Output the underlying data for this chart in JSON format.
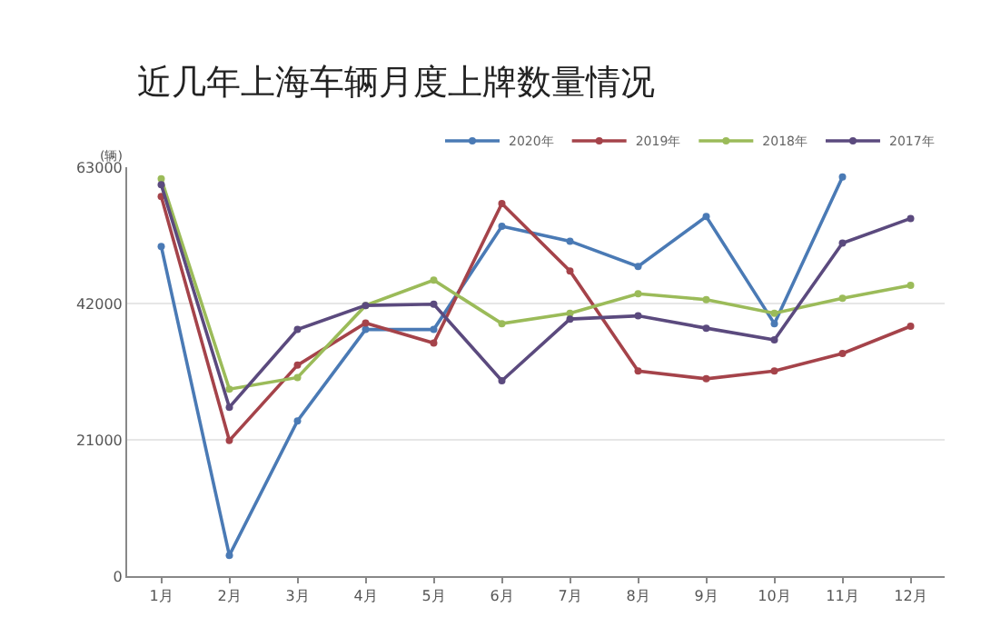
{
  "chart_data": {
    "type": "line",
    "title": "近几年上海车辆月度上牌数量情况",
    "ylabel": "(辆)",
    "categories": [
      "1月",
      "2月",
      "3月",
      "4月",
      "5月",
      "6月",
      "7月",
      "8月",
      "9月",
      "10月",
      "11月",
      "12月"
    ],
    "series": [
      {
        "name": "2020年",
        "color": "#4a7ab5",
        "values": [
          50800,
          3200,
          23900,
          38000,
          38000,
          53900,
          51600,
          47700,
          55400,
          38900,
          61500,
          null
        ]
      },
      {
        "name": "2019年",
        "color": "#a5434a",
        "values": [
          58500,
          20900,
          32500,
          39000,
          35900,
          57400,
          47000,
          31600,
          30400,
          31600,
          34300,
          38500
        ]
      },
      {
        "name": "2018年",
        "color": "#9bbb59",
        "values": [
          61200,
          28800,
          30600,
          41700,
          45600,
          38900,
          40500,
          43500,
          42600,
          40500,
          42800,
          44800
        ]
      },
      {
        "name": "2017年",
        "color": "#5b4a7e",
        "values": [
          60300,
          26000,
          38000,
          41700,
          41900,
          30100,
          39600,
          40100,
          38200,
          36400,
          51300,
          55100
        ]
      }
    ],
    "ylim": [
      0,
      63000
    ],
    "yticks": [
      0,
      21000,
      42000,
      63000
    ],
    "grid": "y",
    "legend": "top right",
    "marker": "circle",
    "line_style": "solid"
  }
}
